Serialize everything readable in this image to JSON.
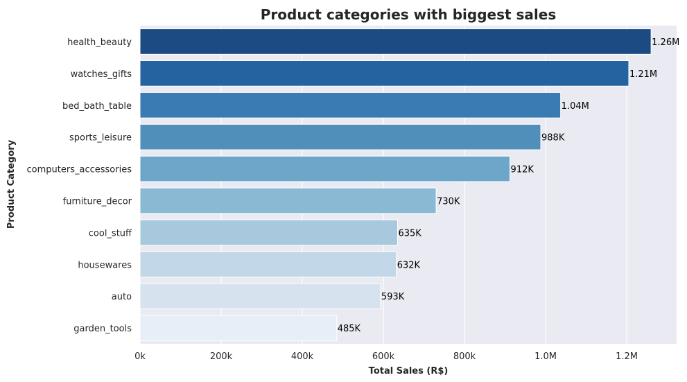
{
  "chart_data": {
    "type": "bar",
    "orientation": "horizontal",
    "title": "Product categories with biggest sales",
    "xlabel": "Total Sales (R$)",
    "ylabel": "Product Category",
    "categories": [
      "health_beauty",
      "watches_gifts",
      "bed_bath_table",
      "sports_leisure",
      "computers_accessories",
      "furniture_decor",
      "cool_stuff",
      "housewares",
      "auto",
      "garden_tools"
    ],
    "values": [
      1260000,
      1205000,
      1037000,
      988000,
      912000,
      730000,
      635000,
      632000,
      593000,
      485000
    ],
    "data_labels": [
      "1.26M",
      "1.21M",
      "1.04M",
      "988K",
      "912K",
      "730K",
      "635K",
      "632K",
      "593K",
      "485K"
    ],
    "colors": [
      "#1c4a82",
      "#2462a0",
      "#3a7bb3",
      "#518fbb",
      "#6da6c9",
      "#8ab9d3",
      "#a8c9dd",
      "#c2d7e7",
      "#d6e3ef",
      "#e6eff8"
    ],
    "xlim": [
      0,
      1323000
    ],
    "x_ticks": [
      0,
      200000,
      400000,
      600000,
      800000,
      1000000,
      1200000
    ],
    "x_tick_labels": [
      "0k",
      "200k",
      "400k",
      "600k",
      "800k",
      "1.0M",
      "1.2M"
    ],
    "grid": true,
    "background_color": "#eaeaf2",
    "grid_color": "#ffffff"
  }
}
